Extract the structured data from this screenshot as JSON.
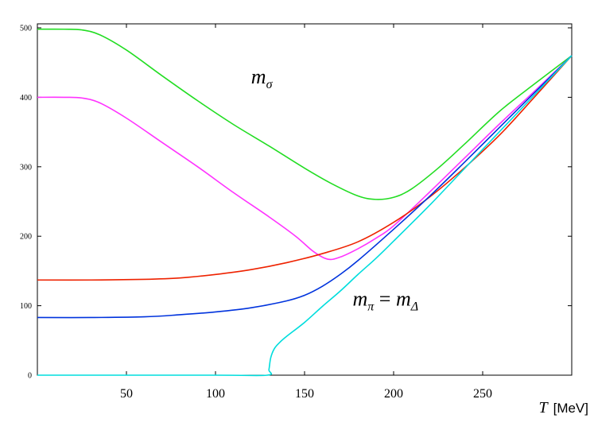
{
  "chart_data": {
    "type": "line",
    "title": "",
    "xlabel": {
      "variable": "T",
      "unit": "[MeV]"
    },
    "ylabel": "",
    "xlim": [
      0,
      300
    ],
    "ylim": [
      0,
      500
    ],
    "x_ticks": [
      50,
      100,
      150,
      200,
      250
    ],
    "y_ticks": [
      0,
      100,
      200,
      300,
      400,
      500
    ],
    "grid": false,
    "annotations": [
      {
        "id": "sigma",
        "base": "m",
        "sub": "σ",
        "x": 120,
        "y": 420
      },
      {
        "id": "pi-delta",
        "base": "m",
        "sub": "π",
        "op": " = ",
        "base2": "m",
        "sub2": "Δ",
        "x": 177,
        "y": 100
      }
    ],
    "series": [
      {
        "color": "#22dd22",
        "x": [
          0,
          15,
          25,
          35,
          50,
          70,
          90,
          110,
          130,
          150,
          165,
          180,
          190,
          200,
          210,
          225,
          240,
          260,
          280,
          300
        ],
        "y": [
          498,
          498,
          497,
          490,
          468,
          431,
          395,
          361,
          330,
          298,
          276,
          258,
          253,
          256,
          268,
          298,
          333,
          381,
          421,
          460
        ]
      },
      {
        "color": "#ff33ff",
        "x": [
          0,
          15,
          25,
          35,
          50,
          70,
          90,
          110,
          130,
          145,
          155,
          163,
          170,
          180,
          190,
          200,
          220,
          240,
          260,
          280,
          300
        ],
        "y": [
          400,
          400,
          399,
          392,
          370,
          335,
          300,
          263,
          228,
          200,
          178,
          167,
          170,
          182,
          197,
          215,
          263,
          313,
          363,
          411,
          460
        ]
      },
      {
        "color": "#ee2200",
        "x": [
          0,
          30,
          60,
          80,
          100,
          120,
          140,
          160,
          180,
          200,
          220,
          240,
          260,
          280,
          300
        ],
        "y": [
          137,
          137,
          138,
          140,
          145,
          152,
          162,
          175,
          192,
          220,
          256,
          299,
          347,
          403,
          460
        ]
      },
      {
        "color": "#0033dd",
        "x": [
          0,
          30,
          60,
          80,
          100,
          120,
          140,
          150,
          160,
          170,
          180,
          200,
          220,
          240,
          260,
          280,
          300
        ],
        "y": [
          83,
          83,
          84,
          87,
          91,
          97,
          107,
          115,
          128,
          145,
          165,
          210,
          257,
          307,
          358,
          409,
          460
        ]
      },
      {
        "color": "#00dddd",
        "x": [
          0,
          100,
          129,
          130,
          131,
          133,
          136,
          140,
          150,
          160,
          170,
          180,
          190,
          200,
          220,
          240,
          260,
          280,
          300
        ],
        "y": [
          0,
          0,
          0,
          8,
          25,
          38,
          47,
          56,
          76,
          99,
          121,
          145,
          168,
          193,
          244,
          298,
          352,
          406,
          460
        ]
      }
    ]
  }
}
